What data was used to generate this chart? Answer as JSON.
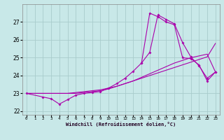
{
  "xlabel": "Windchill (Refroidissement éolien,°C)",
  "xlim": [
    -0.5,
    23.5
  ],
  "ylim": [
    21.8,
    28.0
  ],
  "xticks": [
    0,
    1,
    2,
    3,
    4,
    5,
    6,
    7,
    8,
    9,
    10,
    11,
    12,
    13,
    14,
    15,
    16,
    17,
    18,
    19,
    20,
    21,
    22,
    23
  ],
  "yticks": [
    22,
    23,
    24,
    25,
    26,
    27
  ],
  "bg_color": "#c8e8e8",
  "grid_color": "#a8cccc",
  "line_color": "#aa00aa",
  "line1_x": [
    0,
    1,
    2,
    3,
    4,
    5,
    6,
    7,
    8,
    9,
    10,
    11,
    12,
    13,
    14,
    15,
    16,
    17,
    18,
    19,
    20,
    21,
    22,
    23
  ],
  "line1_y": [
    23.0,
    23.0,
    23.0,
    23.0,
    23.0,
    23.0,
    23.05,
    23.1,
    23.15,
    23.2,
    23.3,
    23.4,
    23.55,
    23.7,
    23.85,
    24.0,
    24.15,
    24.3,
    24.45,
    24.6,
    24.75,
    24.9,
    25.05,
    25.8
  ],
  "line2_x": [
    0,
    1,
    2,
    3,
    4,
    5,
    6,
    7,
    8,
    9,
    10,
    11,
    12,
    13,
    14,
    15,
    16,
    17,
    18,
    19,
    20,
    21,
    22,
    23
  ],
  "line2_y": [
    23.0,
    23.0,
    23.0,
    23.0,
    23.0,
    23.0,
    23.0,
    23.05,
    23.1,
    23.15,
    23.25,
    23.4,
    23.55,
    23.7,
    23.9,
    24.1,
    24.3,
    24.5,
    24.7,
    24.85,
    25.0,
    25.1,
    25.2,
    24.2
  ],
  "line3_x": [
    0,
    2,
    3,
    4,
    5,
    6,
    7,
    8,
    9,
    10,
    11,
    12,
    13,
    14,
    15,
    16,
    17,
    18,
    19,
    20,
    21,
    22,
    23
  ],
  "line3_y": [
    23.0,
    22.8,
    22.7,
    22.4,
    22.65,
    22.9,
    23.0,
    23.05,
    23.1,
    23.3,
    23.55,
    23.85,
    24.25,
    24.7,
    25.3,
    27.4,
    27.15,
    26.9,
    25.85,
    25.05,
    24.55,
    23.85,
    24.2
  ],
  "line4_x": [
    14,
    15,
    16,
    17,
    18,
    19,
    20,
    21,
    22,
    23
  ],
  "line4_y": [
    24.7,
    27.5,
    27.3,
    27.0,
    26.85,
    25.0,
    24.95,
    24.6,
    23.7,
    24.2
  ]
}
